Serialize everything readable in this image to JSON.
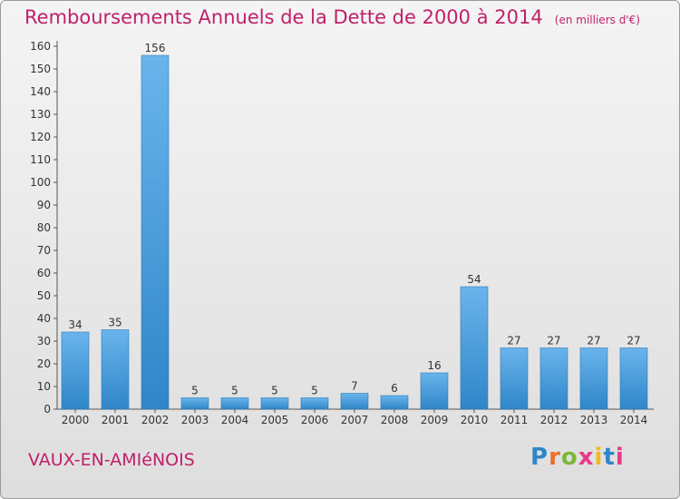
{
  "chart_data": {
    "type": "bar",
    "title": "Remboursements Annuels de la Dette de 2000 à 2014",
    "unit": "(en milliers d'€)",
    "categories": [
      "2000",
      "2001",
      "2002",
      "2003",
      "2004",
      "2005",
      "2006",
      "2007",
      "2008",
      "2009",
      "2010",
      "2011",
      "2012",
      "2013",
      "2014"
    ],
    "values": [
      34,
      35,
      156,
      5,
      5,
      5,
      5,
      7,
      6,
      16,
      54,
      27,
      27,
      27,
      27
    ],
    "ylim": [
      0,
      160
    ],
    "yticks": [
      0,
      10,
      20,
      30,
      40,
      50,
      60,
      70,
      80,
      90,
      100,
      110,
      120,
      130,
      140,
      150,
      160
    ],
    "grid": false,
    "legend": "none",
    "colors": {
      "bar_light": "#6ab4ec",
      "bar_dark": "#2f86c8",
      "title": "#c0206a"
    }
  },
  "commune": "VAUX-EN-AMIéNOIS",
  "brand": {
    "text": "Proxiti",
    "letter_colors": [
      "#2f86c8",
      "#e8712a",
      "#7bb83a",
      "#e63a8a",
      "#f2b81c",
      "#2f86c8",
      "#e63a8a"
    ]
  }
}
